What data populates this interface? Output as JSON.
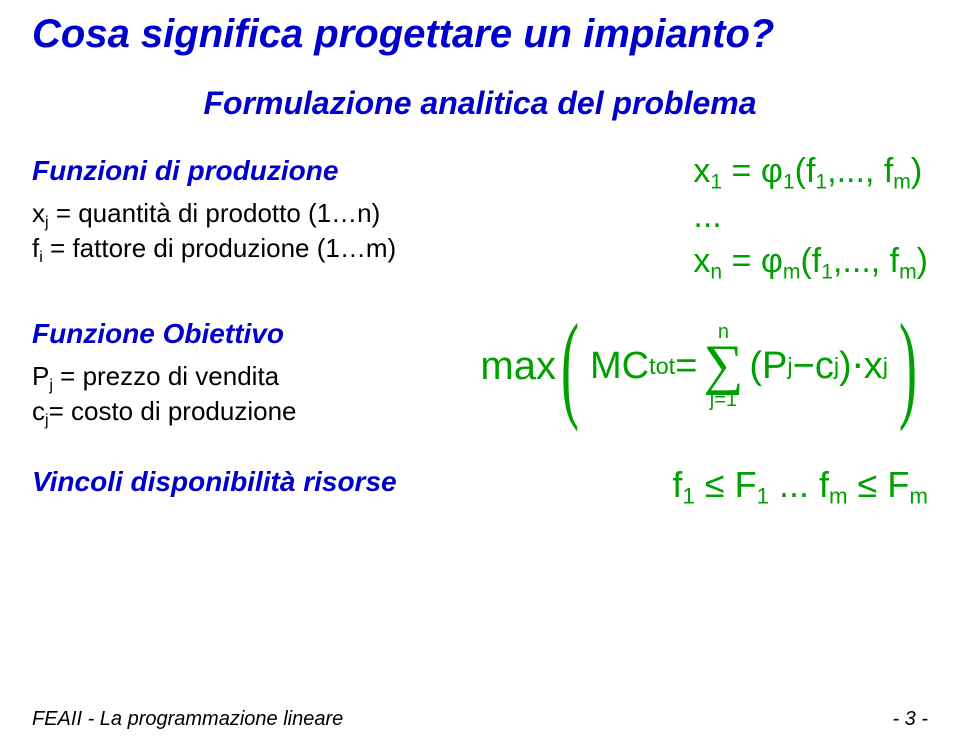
{
  "colors": {
    "title_blue": "color:#0000cc",
    "subtitle_blue": "color:#0000cc",
    "heading_blue": "color:#0000cc",
    "green": "color:#00a000",
    "black": "color:#000000"
  },
  "title": "Cosa significa progettare un impianto?",
  "subtitle": "Formulazione analitica del problema",
  "prod": {
    "heading": "Funzioni di produzione",
    "line1_pre": "x",
    "line1_sub": "j",
    "line1_post": " = quantità di prodotto (1…n)",
    "line2_pre": "f",
    "line2_sub": "i",
    "line2_post": " = fattore di produzione (1…m)",
    "eq1_x": "x",
    "eq1_xsub": "1",
    "eq1_eq": " = ",
    "eq1_phi": "φ",
    "eq1_phisub": "1",
    "eq1_args": "(f",
    "eq1_fsub": "1",
    "eq1_args2": ",..., f",
    "eq1_fmsub": "m",
    "eq1_close": ")",
    "eq_dots": "...",
    "eq3_x": "x",
    "eq3_xsub": "n",
    "eq3_eq": " = ",
    "eq3_phi": "φ",
    "eq3_phisub": "m",
    "eq3_args": "(f",
    "eq3_fsub": "1",
    "eq3_args2": ",..., f",
    "eq3_fmsub": "m",
    "eq3_close": ")"
  },
  "obj": {
    "heading": "Funzione Obiettivo",
    "line1_pre": "P",
    "line1_sub": "j",
    "line1_post": " = prezzo di vendita",
    "line2_pre": "c",
    "line2_sub": "j",
    "line2_post": "= costo di produzione",
    "max": "max",
    "MC": "MC",
    "MCsub": "tot",
    "eq": " = ",
    "sumtop": "n",
    "sumbot_pre": "j",
    "sumbot_eq": "=",
    "sumbot_post": "1",
    "lpar": "(",
    "P": "P",
    "Psub": "j",
    "minus": " − ",
    "c": "c",
    "csub": "j",
    "rpar": ")",
    "dot": " ⋅ ",
    "x": "x",
    "xsub": "j"
  },
  "vinc": {
    "heading": "Vincoli disponibilità risorse",
    "f1": "f",
    "f1sub": "1",
    "le1": " ≤ ",
    "F1": "F",
    "F1sub": "1",
    "dots": "   ...   ",
    "fm": "f",
    "fmsub": "m",
    "le2": " ≤ ",
    "Fm": "F",
    "Fmsub": "m"
  },
  "footer": {
    "left": "FEAII - La programmazione lineare",
    "right": "- 3 -"
  }
}
